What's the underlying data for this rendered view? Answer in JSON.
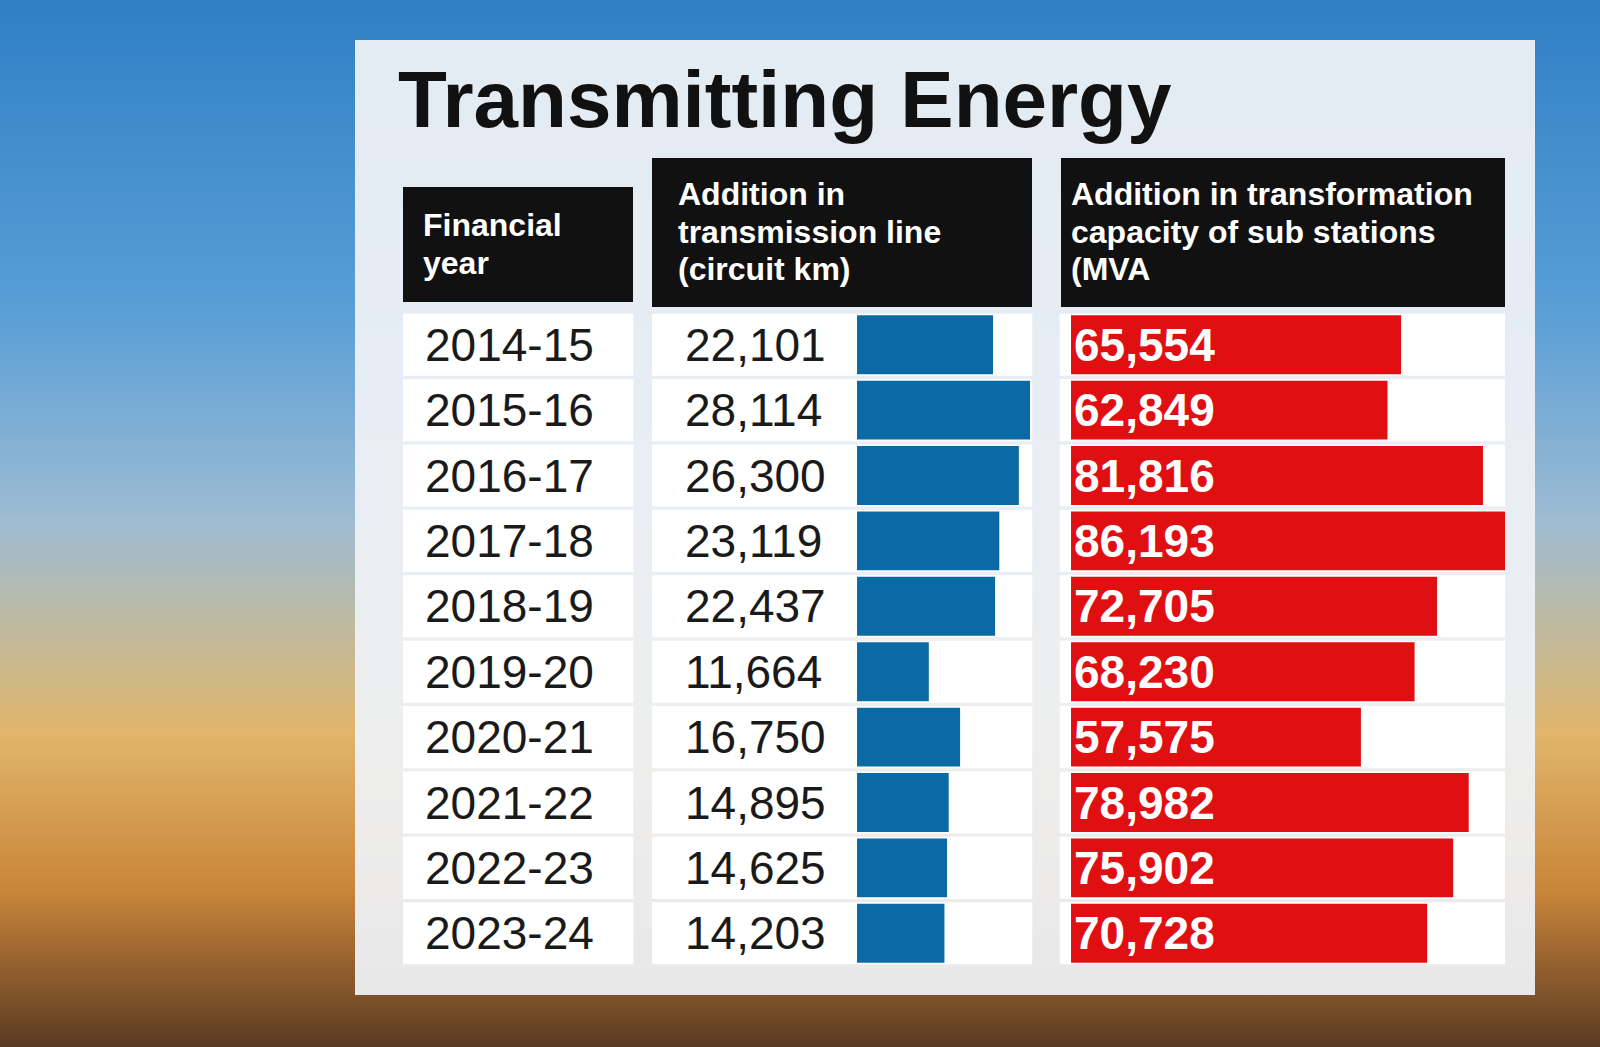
{
  "title": "Transmitting Energy",
  "chart_data": [
    {
      "type": "bar",
      "orientation": "horizontal",
      "title": "Addition in transmission line (circuit km)",
      "ylabel": "Financial year",
      "categories": [
        "2014-15",
        "2015-16",
        "2016-17",
        "2017-18",
        "2018-19",
        "2019-20",
        "2020-21",
        "2021-22",
        "2022-23",
        "2023-24"
      ],
      "values": [
        22101,
        28114,
        26300,
        23119,
        22437,
        11664,
        16750,
        14895,
        14625,
        14203
      ],
      "value_labels": [
        "22,101",
        "28,114",
        "26,300",
        "23,119",
        "22,437",
        "11,664",
        "16,750",
        "14,895",
        "14,625",
        "14,203"
      ],
      "data_labels": true,
      "color": "#0b6aa3",
      "xlim": [
        0,
        28114
      ],
      "tick_labels": "y"
    },
    {
      "type": "bar",
      "orientation": "horizontal",
      "title": "Addition in transformation capacity of sub stations (MVA",
      "categories": [
        "2014-15",
        "2015-16",
        "2016-17",
        "2017-18",
        "2018-19",
        "2019-20",
        "2020-21",
        "2021-22",
        "2022-23",
        "2023-24"
      ],
      "values": [
        65554,
        62849,
        81816,
        86193,
        72705,
        68230,
        57575,
        78982,
        75902,
        70728
      ],
      "value_labels": [
        "65,554",
        "62,849",
        "81,816",
        "86,193",
        "72,705",
        "68,230",
        "57,575",
        "78,982",
        "75,902",
        "70,728"
      ],
      "data_labels": true,
      "color": "#df0f12",
      "xlim": [
        0,
        86193
      ],
      "tick_labels": false
    }
  ]
}
